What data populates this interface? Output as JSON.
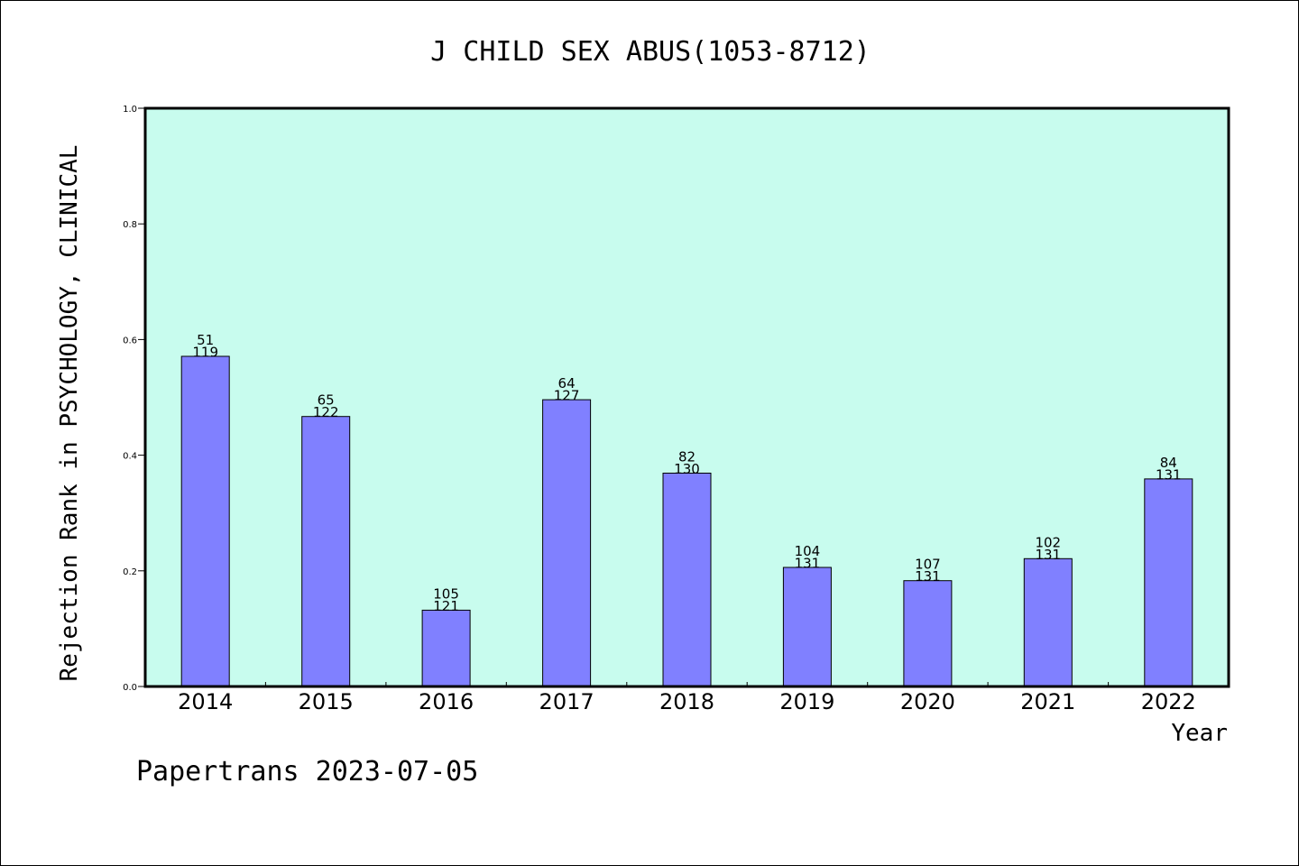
{
  "chart_data": {
    "type": "bar",
    "title": "J CHILD SEX ABUS(1053-8712)",
    "xlabel": "Year",
    "ylabel": "Rejection Rank in PSYCHOLOGY, CLINICAL",
    "ylim": [
      0.0,
      1.0
    ],
    "yticks": [
      "0.0",
      "0.2",
      "0.4",
      "0.6",
      "0.8",
      "1.0"
    ],
    "categories": [
      "2014",
      "2015",
      "2016",
      "2017",
      "2018",
      "2019",
      "2020",
      "2021",
      "2022"
    ],
    "values": [
      0.571,
      0.467,
      0.132,
      0.496,
      0.369,
      0.206,
      0.183,
      0.221,
      0.359
    ],
    "bar_labels": [
      [
        "51",
        "119"
      ],
      [
        "65",
        "122"
      ],
      [
        "105",
        "121"
      ],
      [
        "64",
        "127"
      ],
      [
        "82",
        "130"
      ],
      [
        "104",
        "131"
      ],
      [
        "107",
        "131"
      ],
      [
        "102",
        "131"
      ],
      [
        "84",
        "131"
      ]
    ],
    "grid": false,
    "colors": {
      "plot_background": "#c8fcee",
      "bar_fill": "#8080ff",
      "bar_stroke": "#000000"
    }
  },
  "footer": "Papertrans 2023-07-05"
}
